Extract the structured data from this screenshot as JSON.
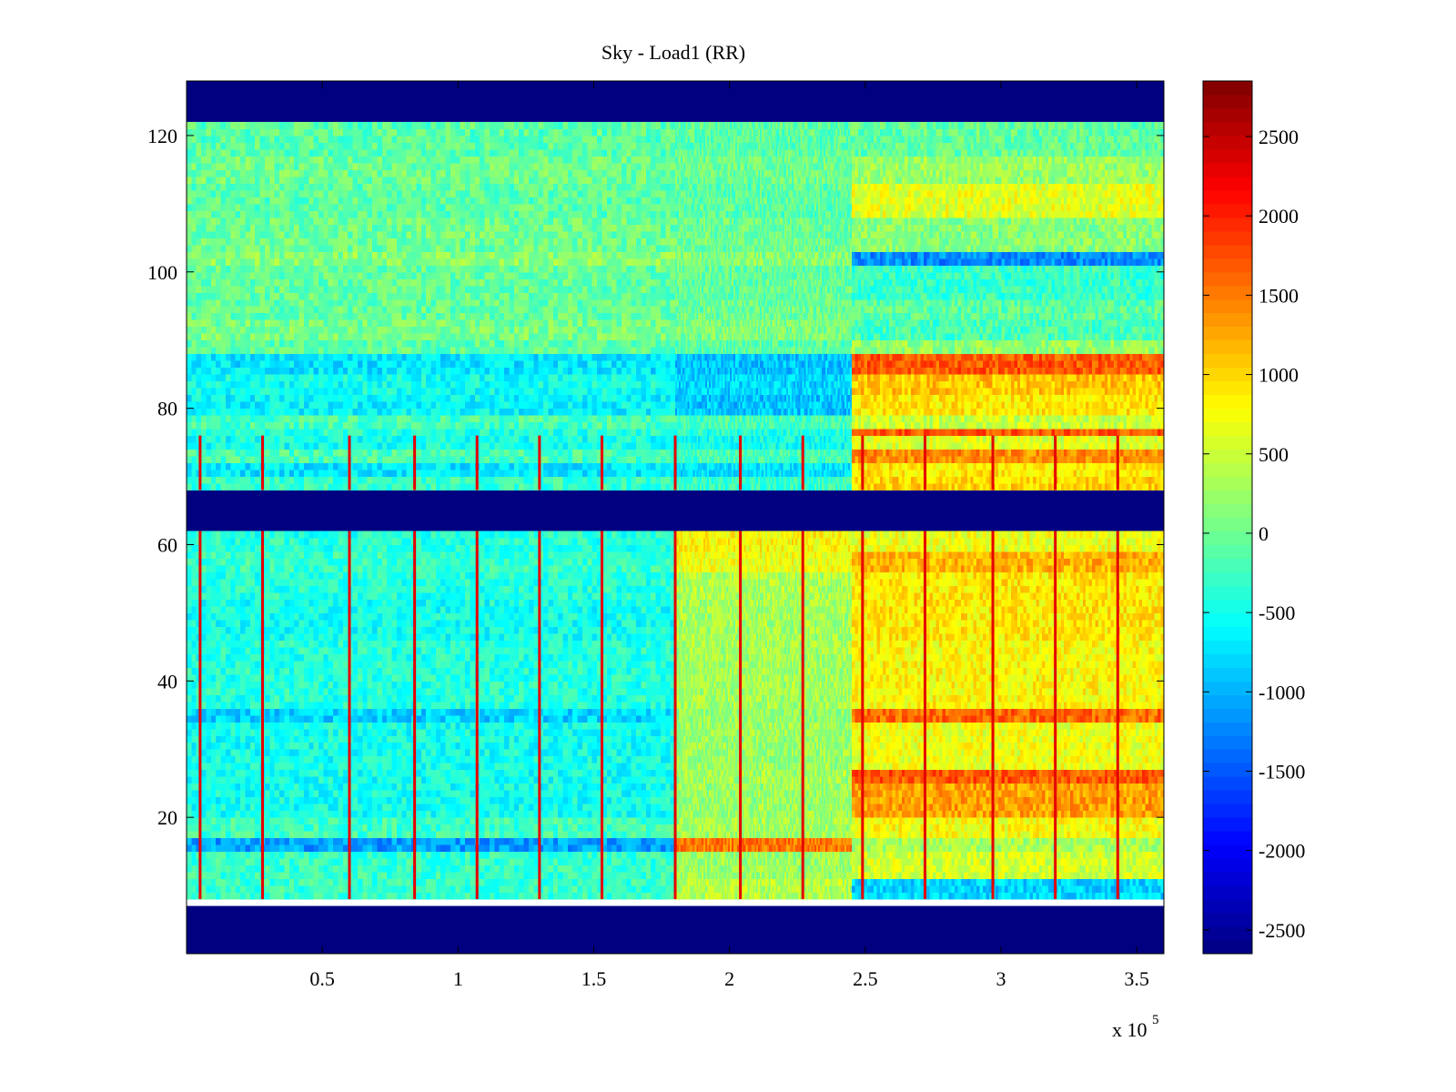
{
  "chart_data": {
    "type": "heatmap",
    "title": "Sky - Load1 (RR)",
    "xlabel": "",
    "ylabel": "",
    "x_range": [
      0,
      360000
    ],
    "y_range": [
      0,
      128
    ],
    "x_ticks": [
      50000,
      100000,
      150000,
      200000,
      250000,
      300000,
      350000
    ],
    "x_tick_labels": [
      "0.5",
      "1",
      "1.5",
      "2",
      "2.5",
      "3",
      "3.5"
    ],
    "x_exponent_label": "x 10",
    "x_exponent_power": "5",
    "y_ticks": [
      20,
      40,
      60,
      80,
      100,
      120
    ],
    "y_tick_labels": [
      "20",
      "40",
      "60",
      "80",
      "100",
      "120"
    ],
    "colormap": "jet",
    "color_range": [
      -2650,
      2850
    ],
    "colorbar_ticks": [
      2500,
      2000,
      1500,
      1000,
      500,
      0,
      -500,
      -1000,
      -1500,
      -2000,
      -2500
    ],
    "colorbar_tick_labels": [
      "2500",
      "2000",
      "1500",
      "1000",
      "500",
      "0",
      "-500",
      "-1000",
      "-1500",
      "-2000",
      "-2500"
    ],
    "masked_rows": [
      [
        0,
        7
      ],
      [
        62,
        68
      ],
      [
        122,
        128
      ]
    ],
    "masked_value": -2650,
    "time_breaks": [
      0,
      180000,
      245000,
      360000
    ],
    "bands": [
      {
        "rows": [
          8,
          11
        ],
        "values": [
          -300,
          400,
          -800
        ]
      },
      {
        "rows": [
          11,
          15
        ],
        "values": [
          -300,
          250,
          550
        ]
      },
      {
        "rows": [
          15,
          17
        ],
        "values": [
          -1100,
          1500,
          300
        ]
      },
      {
        "rows": [
          17,
          20
        ],
        "values": [
          -250,
          300,
          750
        ]
      },
      {
        "rows": [
          20,
          25
        ],
        "values": [
          -500,
          250,
          1300
        ]
      },
      {
        "rows": [
          25,
          27
        ],
        "values": [
          -500,
          300,
          1700
        ]
      },
      {
        "rows": [
          27,
          34
        ],
        "values": [
          -500,
          250,
          700
        ]
      },
      {
        "rows": [
          34,
          36
        ],
        "values": [
          -800,
          200,
          1600
        ]
      },
      {
        "rows": [
          36,
          46
        ],
        "values": [
          -400,
          300,
          800
        ]
      },
      {
        "rows": [
          46,
          52
        ],
        "values": [
          -500,
          300,
          900
        ]
      },
      {
        "rows": [
          52,
          56
        ],
        "values": [
          -400,
          350,
          900
        ]
      },
      {
        "rows": [
          56,
          59
        ],
        "values": [
          -300,
          700,
          1200
        ]
      },
      {
        "rows": [
          59,
          62
        ],
        "values": [
          -400,
          800,
          700
        ]
      },
      {
        "rows": [
          68,
          70
        ],
        "values": [
          -300,
          -300,
          1000
        ]
      },
      {
        "rows": [
          70,
          72
        ],
        "values": [
          -700,
          -700,
          900
        ]
      },
      {
        "rows": [
          72,
          74
        ],
        "values": [
          -200,
          -200,
          1400
        ]
      },
      {
        "rows": [
          74,
          76
        ],
        "values": [
          -500,
          -500,
          600
        ]
      },
      {
        "rows": [
          76,
          77
        ],
        "values": [
          -400,
          -400,
          1700
        ]
      },
      {
        "rows": [
          77,
          79
        ],
        "values": [
          -200,
          -200,
          500
        ]
      },
      {
        "rows": [
          79,
          82
        ],
        "values": [
          -600,
          -900,
          900
        ]
      },
      {
        "rows": [
          82,
          85
        ],
        "values": [
          -500,
          -800,
          1100
        ]
      },
      {
        "rows": [
          85,
          88
        ],
        "values": [
          -700,
          -900,
          1700
        ]
      },
      {
        "rows": [
          88,
          90
        ],
        "values": [
          -100,
          -100,
          200
        ]
      },
      {
        "rows": [
          90,
          93
        ],
        "values": [
          50,
          100,
          -200
        ]
      },
      {
        "rows": [
          93,
          96
        ],
        "values": [
          -50,
          0,
          -100
        ]
      },
      {
        "rows": [
          96,
          101
        ],
        "values": [
          -50,
          -50,
          -300
        ]
      },
      {
        "rows": [
          101,
          103
        ],
        "values": [
          150,
          150,
          -1200
        ]
      },
      {
        "rows": [
          103,
          108
        ],
        "values": [
          0,
          0,
          150
        ]
      },
      {
        "rows": [
          108,
          113
        ],
        "values": [
          -100,
          -100,
          650
        ]
      },
      {
        "rows": [
          113,
          117
        ],
        "values": [
          0,
          0,
          250
        ]
      },
      {
        "rows": [
          117,
          122
        ],
        "values": [
          -100,
          -100,
          -50
        ]
      }
    ],
    "vertical_streaks": [
      5000,
      28000,
      60000,
      84000,
      107000,
      130000,
      153000,
      180000,
      204000,
      227000,
      249000,
      272000,
      297000,
      320000,
      343000
    ]
  }
}
